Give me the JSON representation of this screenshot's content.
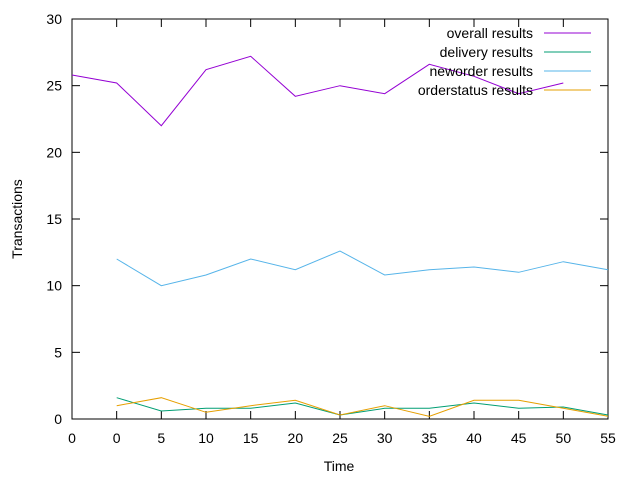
{
  "chart_data": {
    "type": "line",
    "title": "",
    "xlabel": "Time",
    "ylabel": "Transactions",
    "xlim": [
      0,
      55
    ],
    "ylim": [
      0,
      30
    ],
    "x_ticks": [
      "0",
      "0",
      "5",
      "10",
      "15",
      "20",
      "25",
      "30",
      "35",
      "40",
      "45",
      "50",
      "55"
    ],
    "y_ticks": [
      "0",
      "5",
      "10",
      "15",
      "20",
      "25",
      "30"
    ],
    "grid": false,
    "legend_position": "top-right",
    "series": [
      {
        "name": "overall results",
        "color": "#9400d3",
        "points": [
          [
            0,
            25.8
          ],
          [
            5,
            25.2
          ],
          [
            10,
            22.0
          ],
          [
            15,
            26.2
          ],
          [
            20,
            27.2
          ],
          [
            25,
            24.2
          ],
          [
            30,
            25.0
          ],
          [
            35,
            24.4
          ],
          [
            40,
            26.6
          ],
          [
            45,
            25.7
          ],
          [
            50,
            24.4
          ],
          [
            55,
            25.2
          ]
        ]
      },
      {
        "name": "delivery results",
        "color": "#009e73",
        "points": [
          [
            5,
            1.6
          ],
          [
            10,
            0.6
          ],
          [
            15,
            0.8
          ],
          [
            20,
            0.8
          ],
          [
            25,
            1.2
          ],
          [
            30,
            0.3
          ],
          [
            35,
            0.8
          ],
          [
            40,
            0.8
          ],
          [
            45,
            1.2
          ],
          [
            50,
            0.8
          ],
          [
            55,
            0.9
          ],
          [
            60,
            0.3
          ]
        ]
      },
      {
        "name": "neworder results",
        "color": "#56b4e9",
        "points": [
          [
            5,
            12.0
          ],
          [
            10,
            10.0
          ],
          [
            15,
            10.8
          ],
          [
            20,
            12.0
          ],
          [
            25,
            11.2
          ],
          [
            30,
            12.6
          ],
          [
            35,
            10.8
          ],
          [
            40,
            11.2
          ],
          [
            45,
            11.4
          ],
          [
            50,
            11.0
          ],
          [
            55,
            11.8
          ],
          [
            60,
            11.2
          ]
        ]
      },
      {
        "name": "orderstatus results",
        "color": "#e69f00",
        "points": [
          [
            5,
            1.0
          ],
          [
            10,
            1.6
          ],
          [
            15,
            0.5
          ],
          [
            20,
            1.0
          ],
          [
            25,
            1.4
          ],
          [
            30,
            0.3
          ],
          [
            35,
            1.0
          ],
          [
            40,
            0.2
          ],
          [
            45,
            1.4
          ],
          [
            50,
            1.4
          ],
          [
            55,
            0.8
          ],
          [
            60,
            0.2
          ]
        ]
      }
    ]
  }
}
